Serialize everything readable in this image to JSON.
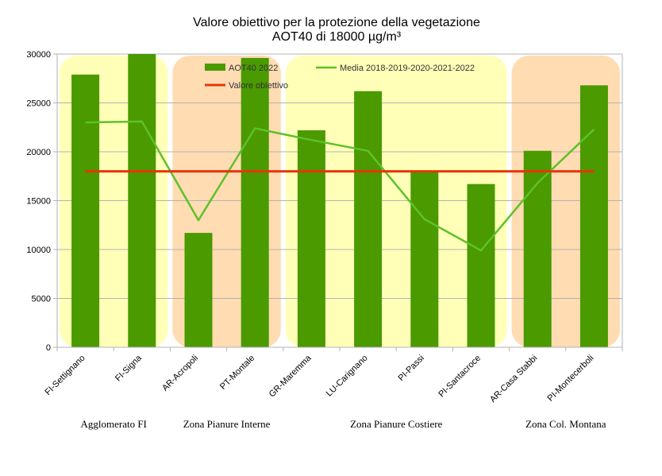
{
  "chart_data": {
    "type": "bar",
    "title": "Valore obiettivo per la protezione della vegetazione",
    "subtitle": "AOT40 di 18000 µg/m³",
    "categories": [
      "FI-Settignano",
      "FI-Signa",
      "AR-Acropoli",
      "PT-Montale",
      "GR-Maremma",
      "LU-Carignano",
      "PI-Passi",
      "PI-Santacroce",
      "AR-Casa Stabbi",
      "PI-Montecerboli"
    ],
    "ylim": [
      0,
      30000
    ],
    "yticks": [
      "0",
      "5000",
      "10000",
      "15000",
      "20000",
      "25000",
      "30000"
    ],
    "grid": true,
    "legend_position": "top-left",
    "series": [
      {
        "name": "AOT40 2022",
        "kind": "bar",
        "color": "#4a9a00",
        "values": [
          27900,
          30000,
          11700,
          29600,
          22200,
          26200,
          18000,
          16700,
          20100,
          26800
        ]
      },
      {
        "name": "Media 2018-2019-2020-2021-2022",
        "kind": "line",
        "color": "#5dc12a",
        "values": [
          23000,
          23100,
          13000,
          22400,
          21200,
          20100,
          13100,
          9900,
          16800,
          22300
        ]
      },
      {
        "name": "Valore obiettivo",
        "kind": "line",
        "color": "#e8340a",
        "values": [
          18000,
          18000,
          18000,
          18000,
          18000,
          18000,
          18000,
          18000,
          18000,
          18000
        ]
      }
    ],
    "zones": [
      {
        "label": "Agglomerato FI",
        "from": 0,
        "to": 1,
        "color": "#ffffb8"
      },
      {
        "label": "Zona Pianure Interne",
        "from": 2,
        "to": 3,
        "color": "#ffdcb2"
      },
      {
        "label": "Zona Pianure  Costiere",
        "from": 4,
        "to": 7,
        "color": "#ffffb8"
      },
      {
        "label": "Zona Col. Montana",
        "from": 8,
        "to": 9,
        "color": "#ffdcb2"
      }
    ]
  }
}
